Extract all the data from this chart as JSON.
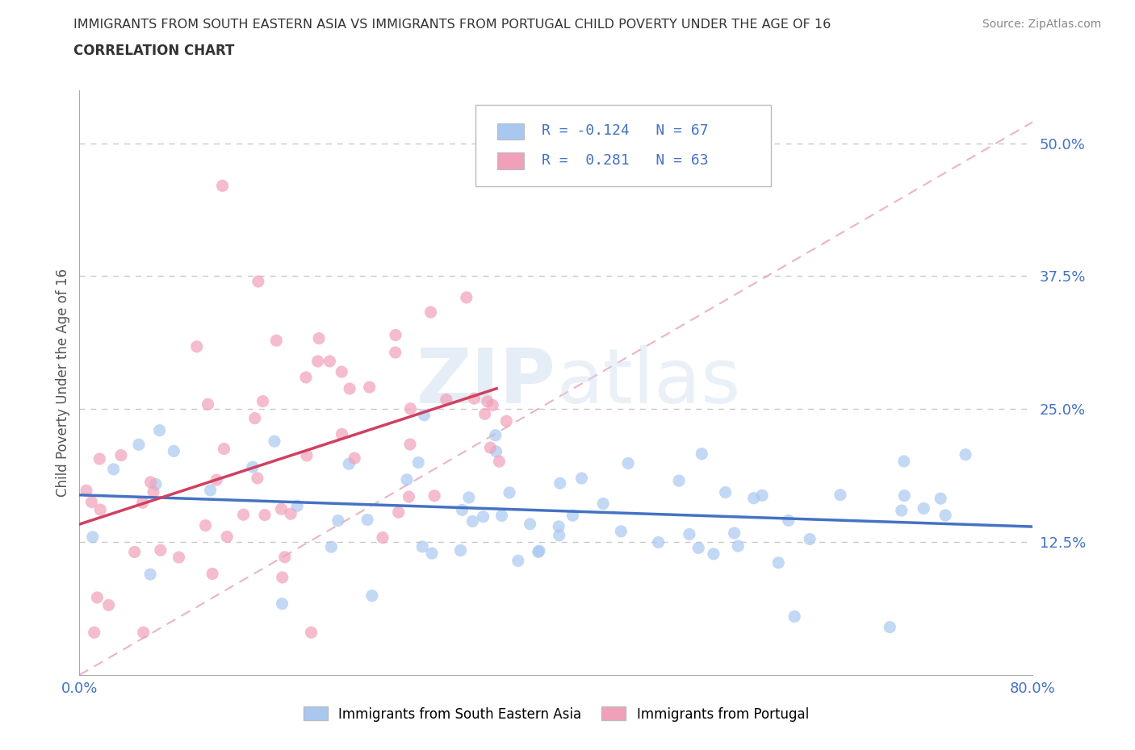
{
  "title_line1": "IMMIGRANTS FROM SOUTH EASTERN ASIA VS IMMIGRANTS FROM PORTUGAL CHILD POVERTY UNDER THE AGE OF 16",
  "title_line2": "CORRELATION CHART",
  "source": "Source: ZipAtlas.com",
  "ylabel": "Child Poverty Under the Age of 16",
  "xlim": [
    0.0,
    0.8
  ],
  "ylim": [
    0.0,
    0.55
  ],
  "series1_color": "#a8c8f0",
  "series2_color": "#f0a0b8",
  "line1_color": "#4472C4",
  "line2_color": "#d04060",
  "diag_color": "#f0a0b8",
  "legend1_label": "Immigrants from South Eastern Asia",
  "legend2_label": "Immigrants from Portugal",
  "R1": -0.124,
  "N1": 67,
  "R2": 0.281,
  "N2": 63,
  "watermark": "ZIPatlas",
  "background_color": "#ffffff",
  "grid_color": "#c8c8c8",
  "axis_color": "#4472C4",
  "title_color": "#333333"
}
